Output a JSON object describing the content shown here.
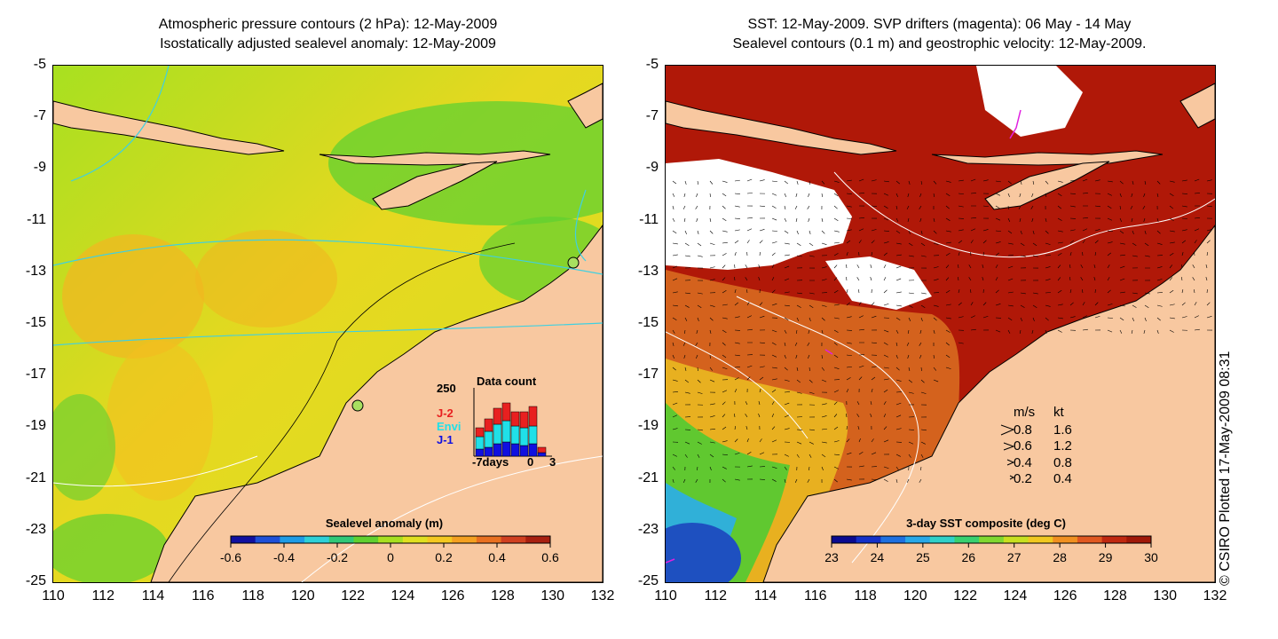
{
  "left_panel": {
    "title_line1": "Atmospheric pressure contours (2 hPa): 12-May-2009",
    "title_line2": "Isostatically adjusted sealevel anomaly: 12-May-2009",
    "colorbar_title": "Sealevel anomaly (m)",
    "colorbar_ticks": [
      "-0.6",
      "-0.4",
      "-0.2",
      "0",
      "0.2",
      "0.4",
      "0.6"
    ],
    "colorbar_colors": [
      "#1010a0",
      "#1e50d8",
      "#1e9ce6",
      "#2ed0d8",
      "#30c878",
      "#60d030",
      "#a8e020",
      "#e0e020",
      "#f4c820",
      "#f4a020",
      "#e87020",
      "#d04020",
      "#a82010"
    ],
    "inset": {
      "title": "Data count",
      "y_max_label": "250",
      "x_labels": [
        "-7days",
        "0",
        "3"
      ],
      "legend": [
        {
          "label": "J-2",
          "color": "#e82020"
        },
        {
          "label": "Envi",
          "color": "#20e0e8"
        },
        {
          "label": "J-1",
          "color": "#1010e0"
        }
      ]
    }
  },
  "right_panel": {
    "title_line1": "SST: 12-May-2009. SVP drifters (magenta): 06 May - 14 May",
    "title_line2": "Sealevel contours (0.1 m) and geostrophic velocity: 12-May-2009.",
    "colorbar_title": "3-day SST composite (deg C)",
    "colorbar_ticks": [
      "23",
      "24",
      "25",
      "26",
      "27",
      "28",
      "29",
      "30"
    ],
    "colorbar_colors": [
      "#0a0a90",
      "#1430c8",
      "#1e70e0",
      "#28a8e8",
      "#30d0c8",
      "#38d070",
      "#80d830",
      "#c8e020",
      "#f0c820",
      "#f09020",
      "#e05820",
      "#c02810",
      "#a01808"
    ],
    "speed_legend": {
      "header_ms": "m/s",
      "header_kt": "kt",
      "rows": [
        {
          "ms": "0.8",
          "kt": "1.6"
        },
        {
          "ms": "0.6",
          "kt": "1.2"
        },
        {
          "ms": "0.4",
          "kt": "0.8"
        },
        {
          "ms": "0.2",
          "kt": "0.4"
        }
      ]
    },
    "copyright": "© CSIRO Plotted 17-May-2009 08:31"
  },
  "axes": {
    "y_ticks": [
      "-5",
      "-7",
      "-9",
      "-11",
      "-13",
      "-15",
      "-17",
      "-19",
      "-21",
      "-23",
      "-25"
    ],
    "x_ticks": [
      "110",
      "112",
      "114",
      "116",
      "118",
      "120",
      "122",
      "124",
      "126",
      "128",
      "130",
      "132"
    ]
  },
  "colors": {
    "land": "#f8c8a0",
    "coastline": "#000000",
    "pressure_contour": "#40d0e0",
    "no_data": "#ffffff"
  }
}
